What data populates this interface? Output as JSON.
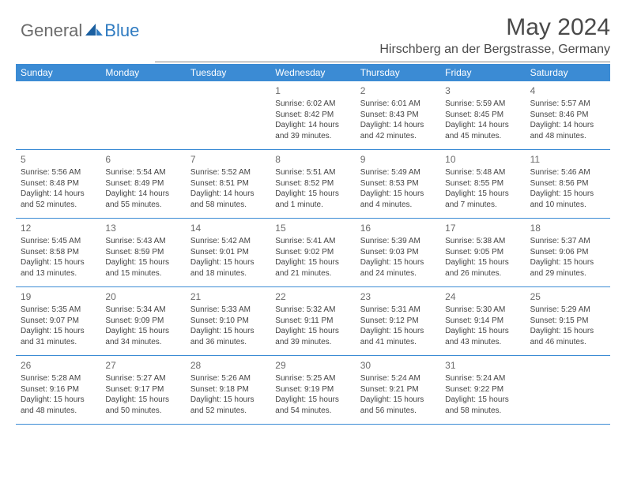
{
  "brand": {
    "part1": "General",
    "part2": "Blue"
  },
  "title": "May 2024",
  "location": "Hirschberg an der Bergstrasse, Germany",
  "weekdays": [
    "Sunday",
    "Monday",
    "Tuesday",
    "Wednesday",
    "Thursday",
    "Friday",
    "Saturday"
  ],
  "colors": {
    "header_bg": "#3b8bd4",
    "header_text": "#ffffff",
    "rule": "#3b8bd4",
    "brand_blue": "#2f7bc1",
    "brand_gray": "#6b6b6b"
  },
  "weeks": [
    [
      {
        "n": "",
        "txt": ""
      },
      {
        "n": "",
        "txt": ""
      },
      {
        "n": "",
        "txt": ""
      },
      {
        "n": "1",
        "txt": "Sunrise: 6:02 AM\nSunset: 8:42 PM\nDaylight: 14 hours and 39 minutes."
      },
      {
        "n": "2",
        "txt": "Sunrise: 6:01 AM\nSunset: 8:43 PM\nDaylight: 14 hours and 42 minutes."
      },
      {
        "n": "3",
        "txt": "Sunrise: 5:59 AM\nSunset: 8:45 PM\nDaylight: 14 hours and 45 minutes."
      },
      {
        "n": "4",
        "txt": "Sunrise: 5:57 AM\nSunset: 8:46 PM\nDaylight: 14 hours and 48 minutes."
      }
    ],
    [
      {
        "n": "5",
        "txt": "Sunrise: 5:56 AM\nSunset: 8:48 PM\nDaylight: 14 hours and 52 minutes."
      },
      {
        "n": "6",
        "txt": "Sunrise: 5:54 AM\nSunset: 8:49 PM\nDaylight: 14 hours and 55 minutes."
      },
      {
        "n": "7",
        "txt": "Sunrise: 5:52 AM\nSunset: 8:51 PM\nDaylight: 14 hours and 58 minutes."
      },
      {
        "n": "8",
        "txt": "Sunrise: 5:51 AM\nSunset: 8:52 PM\nDaylight: 15 hours and 1 minute."
      },
      {
        "n": "9",
        "txt": "Sunrise: 5:49 AM\nSunset: 8:53 PM\nDaylight: 15 hours and 4 minutes."
      },
      {
        "n": "10",
        "txt": "Sunrise: 5:48 AM\nSunset: 8:55 PM\nDaylight: 15 hours and 7 minutes."
      },
      {
        "n": "11",
        "txt": "Sunrise: 5:46 AM\nSunset: 8:56 PM\nDaylight: 15 hours and 10 minutes."
      }
    ],
    [
      {
        "n": "12",
        "txt": "Sunrise: 5:45 AM\nSunset: 8:58 PM\nDaylight: 15 hours and 13 minutes."
      },
      {
        "n": "13",
        "txt": "Sunrise: 5:43 AM\nSunset: 8:59 PM\nDaylight: 15 hours and 15 minutes."
      },
      {
        "n": "14",
        "txt": "Sunrise: 5:42 AM\nSunset: 9:01 PM\nDaylight: 15 hours and 18 minutes."
      },
      {
        "n": "15",
        "txt": "Sunrise: 5:41 AM\nSunset: 9:02 PM\nDaylight: 15 hours and 21 minutes."
      },
      {
        "n": "16",
        "txt": "Sunrise: 5:39 AM\nSunset: 9:03 PM\nDaylight: 15 hours and 24 minutes."
      },
      {
        "n": "17",
        "txt": "Sunrise: 5:38 AM\nSunset: 9:05 PM\nDaylight: 15 hours and 26 minutes."
      },
      {
        "n": "18",
        "txt": "Sunrise: 5:37 AM\nSunset: 9:06 PM\nDaylight: 15 hours and 29 minutes."
      }
    ],
    [
      {
        "n": "19",
        "txt": "Sunrise: 5:35 AM\nSunset: 9:07 PM\nDaylight: 15 hours and 31 minutes."
      },
      {
        "n": "20",
        "txt": "Sunrise: 5:34 AM\nSunset: 9:09 PM\nDaylight: 15 hours and 34 minutes."
      },
      {
        "n": "21",
        "txt": "Sunrise: 5:33 AM\nSunset: 9:10 PM\nDaylight: 15 hours and 36 minutes."
      },
      {
        "n": "22",
        "txt": "Sunrise: 5:32 AM\nSunset: 9:11 PM\nDaylight: 15 hours and 39 minutes."
      },
      {
        "n": "23",
        "txt": "Sunrise: 5:31 AM\nSunset: 9:12 PM\nDaylight: 15 hours and 41 minutes."
      },
      {
        "n": "24",
        "txt": "Sunrise: 5:30 AM\nSunset: 9:14 PM\nDaylight: 15 hours and 43 minutes."
      },
      {
        "n": "25",
        "txt": "Sunrise: 5:29 AM\nSunset: 9:15 PM\nDaylight: 15 hours and 46 minutes."
      }
    ],
    [
      {
        "n": "26",
        "txt": "Sunrise: 5:28 AM\nSunset: 9:16 PM\nDaylight: 15 hours and 48 minutes."
      },
      {
        "n": "27",
        "txt": "Sunrise: 5:27 AM\nSunset: 9:17 PM\nDaylight: 15 hours and 50 minutes."
      },
      {
        "n": "28",
        "txt": "Sunrise: 5:26 AM\nSunset: 9:18 PM\nDaylight: 15 hours and 52 minutes."
      },
      {
        "n": "29",
        "txt": "Sunrise: 5:25 AM\nSunset: 9:19 PM\nDaylight: 15 hours and 54 minutes."
      },
      {
        "n": "30",
        "txt": "Sunrise: 5:24 AM\nSunset: 9:21 PM\nDaylight: 15 hours and 56 minutes."
      },
      {
        "n": "31",
        "txt": "Sunrise: 5:24 AM\nSunset: 9:22 PM\nDaylight: 15 hours and 58 minutes."
      },
      {
        "n": "",
        "txt": ""
      }
    ]
  ]
}
